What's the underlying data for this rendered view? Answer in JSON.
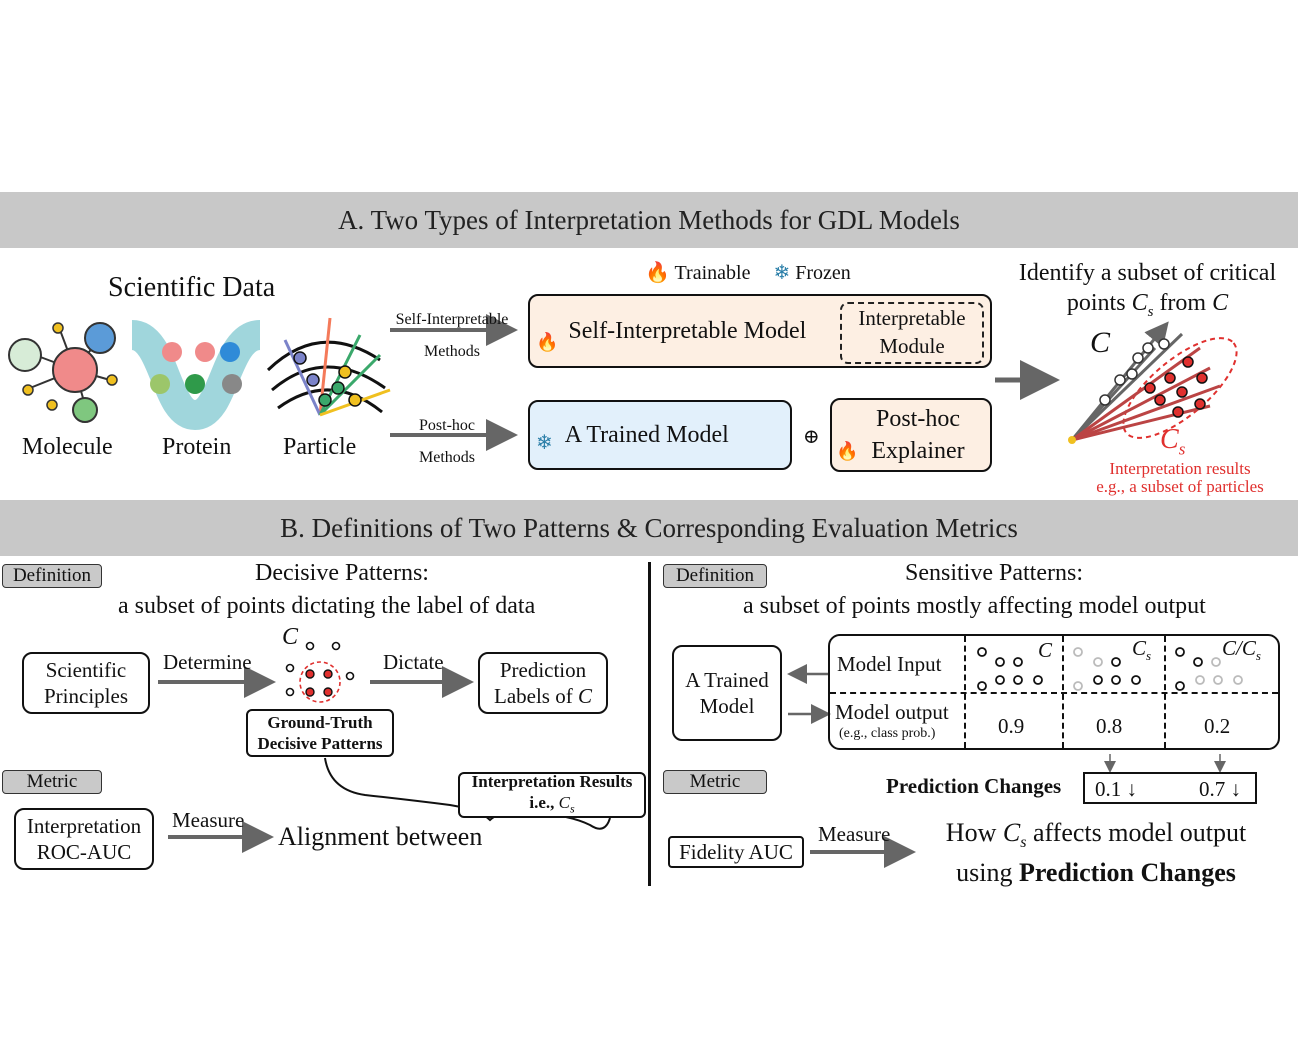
{
  "sectionA": {
    "title": "A. Two Types of Interpretation Methods for GDL Models",
    "scientific_data": "Scientific Data",
    "data_items": [
      "Molecule",
      "Protein",
      "Particle"
    ],
    "legend": {
      "trainable": "Trainable",
      "frozen": "Frozen"
    },
    "arrow_self": {
      "line1": "Self-Interpretable",
      "line2": "Methods"
    },
    "arrow_posthoc": {
      "line1": "Post-hoc",
      "line2": "Methods"
    },
    "self_model": "Self-Interpretable Model",
    "interp_module": {
      "line1": "Interpretable",
      "line2": "Module"
    },
    "trained_model": "A Trained Model",
    "oplus": "⊕",
    "posthoc_explainer": {
      "line1": "Post-hoc",
      "line2": "Explainer"
    },
    "identify": {
      "line1": "Identify a subset of critical",
      "line2a": "points ",
      "cs": "C",
      "cs_sub": "s",
      "line2b": " from ",
      "c": "C"
    },
    "cluster_label_c": "C",
    "cluster_label_cs": "C",
    "cluster_label_cs_sub": "s",
    "interp_results": {
      "line1": "Interpretation results",
      "line2": "e.g., a subset of particles"
    },
    "colors": {
      "red": "#e0302e",
      "band": "#c8c8c8",
      "peach": "#fdefe3",
      "blue": "#e2f0fb"
    },
    "icons": [
      "flame-icon",
      "snowflake-icon"
    ]
  },
  "sectionB": {
    "title": "B. Definitions of Two Patterns & Corresponding Evaluation Metrics",
    "left": {
      "tag_definition": "Definition",
      "heading1": "Decisive Patterns:",
      "heading2": "a subset of points dictating the label of data",
      "sci_principles": {
        "line1": "Scientific",
        "line2": "Principles"
      },
      "determine": "Determine",
      "dictate": "Dictate",
      "c_label": "C",
      "prediction_labels": {
        "line1": "Prediction",
        "line2a": "Labels of ",
        "c": "C"
      },
      "gt": {
        "line1": "Ground-Truth",
        "line2": "Decisive Patterns"
      },
      "tag_metric": "Metric",
      "roc": {
        "line1": "Interpretation",
        "line2": "ROC-AUC"
      },
      "measure": "Measure",
      "alignment": "Alignment between",
      "interp_results": {
        "line1": "Interpretation Results",
        "line2a": "i.e., ",
        "cs": "C",
        "cs_sub": "s"
      }
    },
    "right": {
      "tag_definition": "Definition",
      "heading1": "Sensitive Patterns:",
      "heading2": "a subset of points mostly affecting model output",
      "trained_model": {
        "line1": "A Trained",
        "line2": "Model"
      },
      "model_input": "Model Input",
      "model_output": "Model output",
      "model_output_sub": "(e.g., class prob.)",
      "col_labels": [
        {
          "main": "C",
          "sub": ""
        },
        {
          "main": "C",
          "sub": "s"
        },
        {
          "main": "C/C",
          "sub": "s"
        }
      ],
      "outputs": [
        "0.9",
        "0.8",
        "0.2"
      ],
      "prediction_changes_label": "Prediction Changes",
      "changes": [
        "0.1 ↓",
        "0.7 ↓"
      ],
      "tag_metric": "Metric",
      "fidelity": "Fidelity AUC",
      "measure": "Measure",
      "how1a": "How ",
      "how_cs": "C",
      "how_cs_sub": "s",
      "how1b": " affects model output",
      "how2a": "using ",
      "how2b": "Prediction Changes"
    }
  }
}
